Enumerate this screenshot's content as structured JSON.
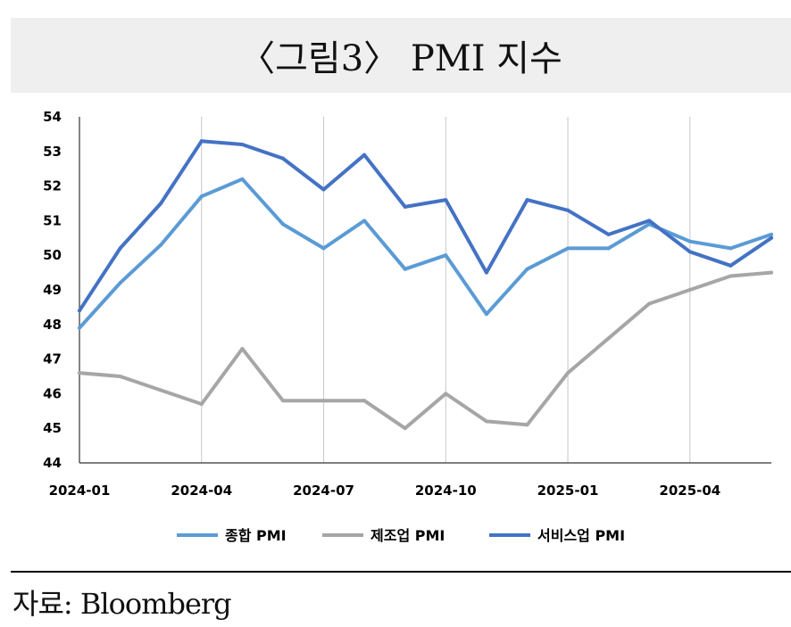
{
  "title": "〈그림3〉 PMI 지수",
  "source": "자료: Bloomberg",
  "colors": {
    "composite": "#5b9bd5",
    "manufacturing": "#a6a6a6",
    "services": "#4472c4",
    "grid": "#c8c8c8",
    "axis": "#333333",
    "title_bg": "#efefef"
  },
  "chart_data": {
    "type": "line",
    "x": [
      "2024-01",
      "2024-02",
      "2024-03",
      "2024-04",
      "2024-05",
      "2024-06",
      "2024-07",
      "2024-08",
      "2024-09",
      "2024-10",
      "2024-11",
      "2024-12",
      "2025-01",
      "2025-02",
      "2025-03",
      "2025-04",
      "2025-05",
      "2025-06"
    ],
    "x_tick_labels": [
      "2024-01",
      "2024-04",
      "2024-07",
      "2024-10",
      "2025-01",
      "2025-04"
    ],
    "y_ticks": [
      44,
      45,
      46,
      47,
      48,
      49,
      50,
      51,
      52,
      53,
      54
    ],
    "ylim": [
      44,
      54
    ],
    "grid": "vertical",
    "legend_position": "bottom",
    "series": [
      {
        "name": "종합 PMI",
        "color": "#5b9bd5",
        "values": [
          47.9,
          49.2,
          50.3,
          51.7,
          52.2,
          50.9,
          50.2,
          51.0,
          49.6,
          50.0,
          48.3,
          49.6,
          50.2,
          50.2,
          50.9,
          50.4,
          50.2,
          50.6
        ]
      },
      {
        "name": "제조업 PMI",
        "color": "#a6a6a6",
        "values": [
          46.6,
          46.5,
          46.1,
          45.7,
          47.3,
          45.8,
          45.8,
          45.8,
          45.0,
          46.0,
          45.2,
          45.1,
          46.6,
          47.6,
          48.6,
          49.0,
          49.4,
          49.5
        ]
      },
      {
        "name": "서비스업 PMI",
        "color": "#4472c4",
        "values": [
          48.4,
          50.2,
          51.5,
          53.3,
          53.2,
          52.8,
          51.9,
          52.9,
          51.4,
          51.6,
          49.5,
          51.6,
          51.3,
          50.6,
          51.0,
          50.1,
          49.7,
          50.5
        ]
      }
    ]
  }
}
